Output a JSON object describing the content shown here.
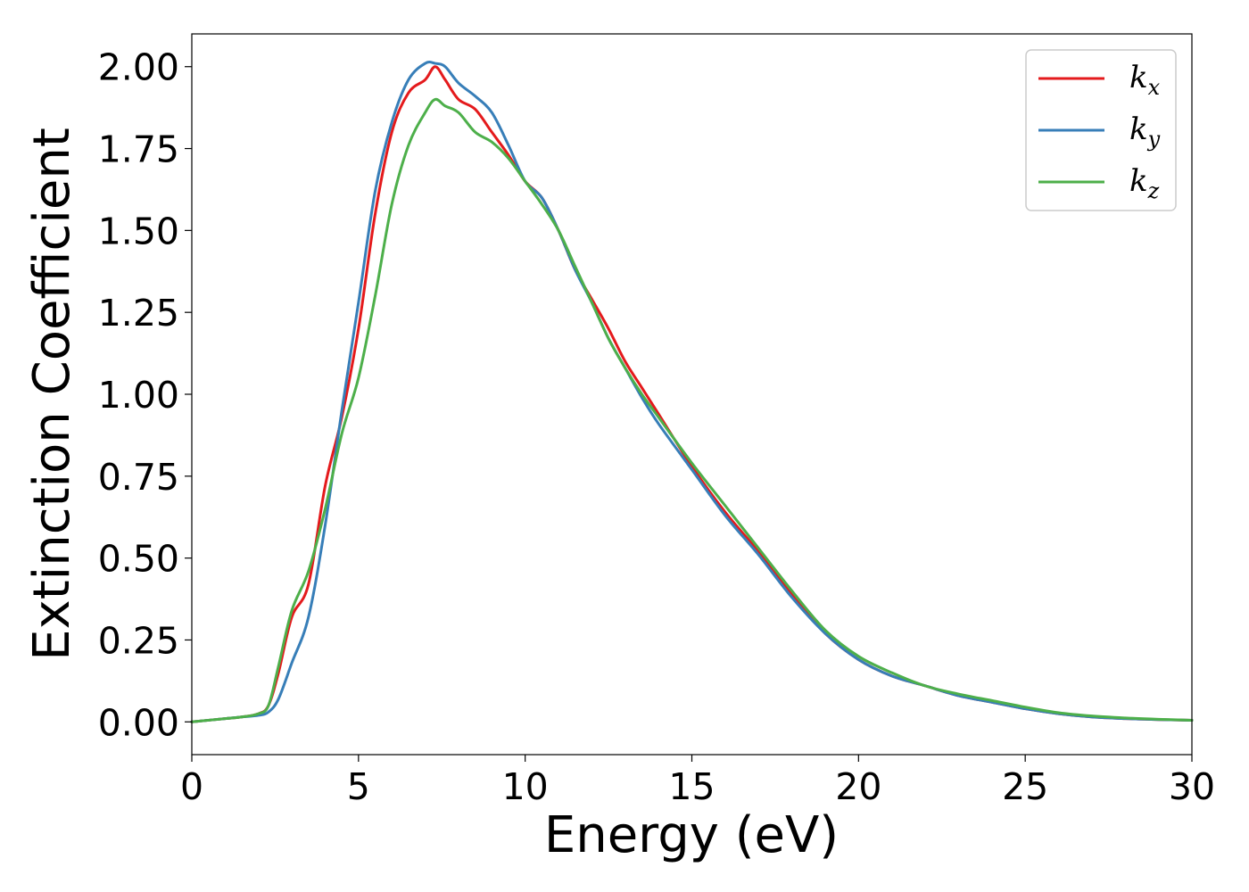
{
  "chart_data": {
    "type": "line",
    "xlabel": "Energy (eV)",
    "ylabel": "Extinction Coefficient",
    "xlim": [
      0,
      30
    ],
    "ylim": [
      -0.1,
      2.1
    ],
    "xticks": [
      0,
      5,
      10,
      15,
      20,
      25,
      30
    ],
    "xtick_labels": [
      "0",
      "5",
      "10",
      "15",
      "20",
      "25",
      "30"
    ],
    "yticks": [
      0,
      0.25,
      0.5,
      0.75,
      1.0,
      1.25,
      1.5,
      1.75,
      2.0
    ],
    "ytick_labels": [
      "0.00",
      "0.25",
      "0.50",
      "0.75",
      "1.00",
      "1.25",
      "1.50",
      "1.75",
      "2.00"
    ],
    "grid": false,
    "legend_position": "top-right",
    "series": [
      {
        "name": "k_x",
        "label_base": "k",
        "label_sub": "x",
        "color": "#e41a1c",
        "x": [
          0,
          1,
          1.5,
          2,
          2.3,
          2.6,
          3,
          3.5,
          4,
          4.5,
          5,
          5.5,
          6,
          6.5,
          7,
          7.3,
          7.6,
          8,
          8.5,
          9,
          9.5,
          10,
          10.5,
          11,
          11.5,
          12,
          12.5,
          13,
          13.5,
          14,
          15,
          16,
          17,
          18,
          19,
          20,
          21,
          22,
          23,
          24,
          25,
          26,
          27,
          28,
          29,
          30
        ],
        "y": [
          0.0,
          0.01,
          0.015,
          0.025,
          0.05,
          0.15,
          0.32,
          0.42,
          0.72,
          0.93,
          1.2,
          1.55,
          1.8,
          1.92,
          1.96,
          2.0,
          1.96,
          1.9,
          1.87,
          1.8,
          1.73,
          1.65,
          1.6,
          1.5,
          1.38,
          1.29,
          1.2,
          1.1,
          1.02,
          0.94,
          0.78,
          0.64,
          0.52,
          0.39,
          0.27,
          0.19,
          0.14,
          0.11,
          0.08,
          0.06,
          0.04,
          0.025,
          0.015,
          0.01,
          0.007,
          0.005
        ]
      },
      {
        "name": "k_y",
        "label_base": "k",
        "label_sub": "y",
        "color": "#377eb8",
        "x": [
          0,
          1,
          1.5,
          2,
          2.3,
          2.6,
          3,
          3.5,
          4,
          4.5,
          5,
          5.5,
          6,
          6.5,
          7,
          7.3,
          7.6,
          8,
          8.5,
          9,
          9.5,
          10,
          10.5,
          11,
          11.5,
          12,
          12.5,
          13,
          13.5,
          14,
          15,
          16,
          17,
          18,
          19,
          20,
          21,
          22,
          23,
          24,
          25,
          26,
          27,
          28,
          29,
          30
        ],
        "y": [
          0.0,
          0.01,
          0.015,
          0.02,
          0.03,
          0.07,
          0.18,
          0.32,
          0.6,
          0.95,
          1.28,
          1.62,
          1.83,
          1.96,
          2.01,
          2.01,
          2.0,
          1.95,
          1.91,
          1.86,
          1.76,
          1.65,
          1.6,
          1.5,
          1.38,
          1.28,
          1.17,
          1.08,
          0.99,
          0.91,
          0.77,
          0.63,
          0.51,
          0.38,
          0.27,
          0.19,
          0.14,
          0.11,
          0.08,
          0.06,
          0.04,
          0.025,
          0.015,
          0.01,
          0.007,
          0.005
        ]
      },
      {
        "name": "k_z",
        "label_base": "k",
        "label_sub": "z",
        "color": "#4daf4a",
        "x": [
          0,
          1,
          1.5,
          2,
          2.3,
          2.6,
          3,
          3.5,
          4,
          4.5,
          5,
          5.5,
          6,
          6.5,
          7,
          7.3,
          7.6,
          8,
          8.5,
          9,
          9.5,
          10,
          10.5,
          11,
          11.5,
          12,
          12.5,
          13,
          13.5,
          14,
          15,
          16,
          17,
          18,
          19,
          20,
          21,
          22,
          23,
          24,
          25,
          26,
          27,
          28,
          29,
          30
        ],
        "y": [
          0.0,
          0.01,
          0.015,
          0.025,
          0.05,
          0.17,
          0.34,
          0.46,
          0.65,
          0.88,
          1.05,
          1.3,
          1.58,
          1.76,
          1.86,
          1.9,
          1.88,
          1.86,
          1.8,
          1.77,
          1.72,
          1.65,
          1.58,
          1.5,
          1.39,
          1.28,
          1.17,
          1.08,
          1.0,
          0.93,
          0.79,
          0.66,
          0.53,
          0.4,
          0.28,
          0.2,
          0.15,
          0.11,
          0.085,
          0.065,
          0.045,
          0.028,
          0.018,
          0.012,
          0.008,
          0.005
        ]
      }
    ]
  }
}
